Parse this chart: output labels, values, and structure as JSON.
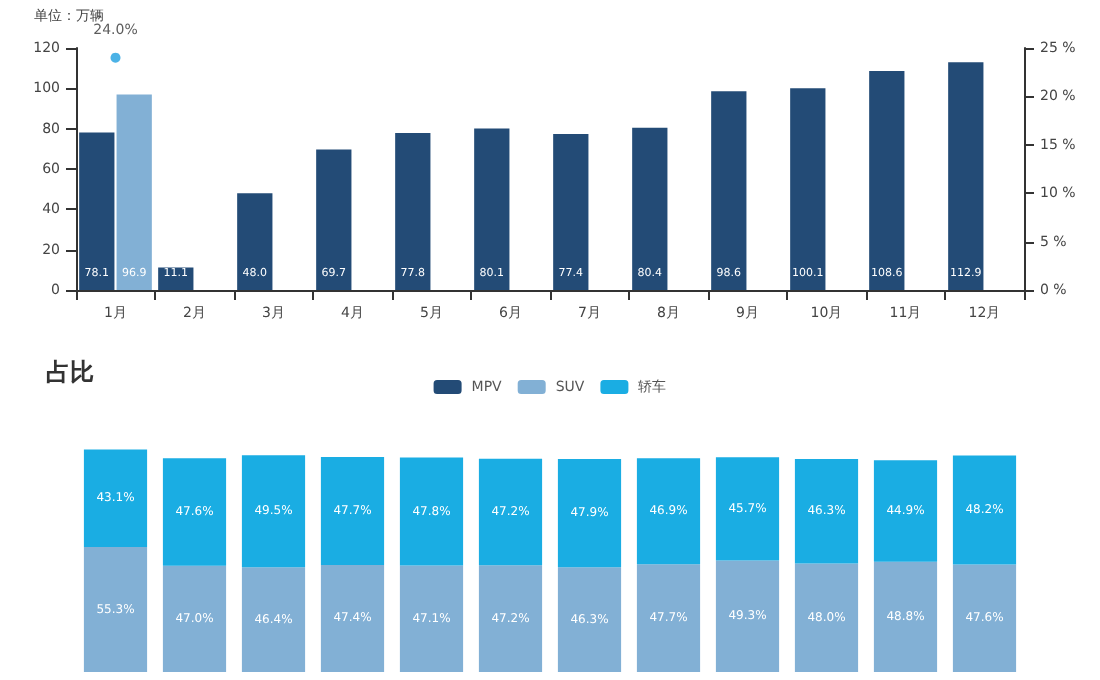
{
  "chart_data": [
    {
      "type": "bar",
      "ylabel": "单位：万辆",
      "categories": [
        "1月",
        "2月",
        "3月",
        "4月",
        "5月",
        "6月",
        "7月",
        "8月",
        "9月",
        "10月",
        "11月",
        "12月"
      ],
      "series": [
        {
          "color": "#234b76",
          "values": [
            78.1,
            11.1,
            48.0,
            69.7,
            77.8,
            80.1,
            77.4,
            80.4,
            98.6,
            100.1,
            108.6,
            112.9
          ],
          "value_labels": [
            "78.1",
            "11.1",
            "48.0",
            "69.7",
            "77.8",
            "80.1",
            "77.4",
            "80.4",
            "98.6",
            "100.1",
            "108.6",
            "112.9"
          ]
        },
        {
          "color": "#82b0d5",
          "values": [
            96.9,
            null,
            null,
            null,
            null,
            null,
            null,
            null,
            null,
            null,
            null,
            null
          ],
          "value_labels": [
            "96.9",
            null,
            null,
            null,
            null,
            null,
            null,
            null,
            null,
            null,
            null,
            null
          ]
        },
        {
          "type": "scatter",
          "axis": "y2",
          "color": "#1e9fe0",
          "x": [
            "1月"
          ],
          "values": [
            24.0
          ],
          "value_labels": [
            "24.0%"
          ]
        }
      ],
      "marker": "circle",
      "ylim": [
        0,
        120
      ],
      "yticks": [
        0,
        20,
        40,
        60,
        80,
        100,
        120
      ],
      "y2lim": [
        0,
        25
      ],
      "y2ticks": [
        {
          "value": 0,
          "label": "0 %"
        },
        {
          "value": 5,
          "label": "5 %"
        },
        {
          "value": 10,
          "label": "10 %"
        },
        {
          "value": 15,
          "label": "15 %"
        },
        {
          "value": 20,
          "label": "20 %"
        },
        {
          "value": 25,
          "label": "25 %"
        }
      ]
    },
    {
      "type": "bar",
      "title": "占比",
      "stacked": true,
      "legend": "top",
      "tick_labels": false,
      "categories": [
        null,
        null,
        null,
        null,
        null,
        null,
        null,
        null,
        null,
        null,
        null,
        null
      ],
      "series": [
        {
          "name": "MPV",
          "color": "#234b76",
          "values": [
            null,
            null,
            null,
            null,
            null,
            null,
            null,
            null,
            null,
            null,
            null,
            null
          ]
        },
        {
          "name": "SUV",
          "color": "#82b0d5",
          "values": [
            55.3,
            47.0,
            46.4,
            47.4,
            47.1,
            47.2,
            46.3,
            47.7,
            49.3,
            48.0,
            48.8,
            47.6
          ],
          "value_labels": [
            "55.3%",
            "47.0%",
            "46.4%",
            "47.4%",
            "47.1%",
            "47.2%",
            "46.3%",
            "47.7%",
            "49.3%",
            "48.0%",
            "48.8%",
            "47.6%"
          ]
        },
        {
          "name": "轿车",
          "color": "#1aade3",
          "values": [
            43.1,
            47.6,
            49.5,
            47.7,
            47.8,
            47.2,
            47.9,
            46.9,
            45.7,
            46.3,
            44.9,
            48.2
          ],
          "value_labels": [
            "43.1%",
            "47.6%",
            "49.5%",
            "47.7%",
            "47.8%",
            "47.2%",
            "47.9%",
            "46.9%",
            "45.7%",
            "46.3%",
            "44.9%",
            "48.2%"
          ]
        }
      ]
    }
  ]
}
